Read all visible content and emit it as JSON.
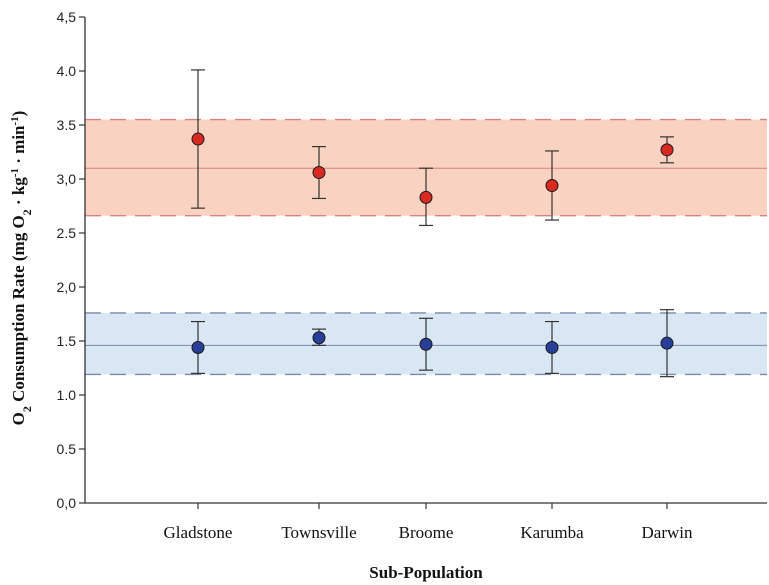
{
  "chart_data": {
    "type": "scatter",
    "title": "",
    "xlabel": "Sub-Population",
    "ylabel_parts": {
      "a": "O",
      "a_sub": "2",
      "b": " Consumption Rate (mg O",
      "b_sub": "2",
      "c": " · kg",
      "c_sup": "-1",
      "d": " · min",
      "d_sup": "-1",
      "e": ")"
    },
    "categories": [
      "Gladstone",
      "Townsville",
      "Broome",
      "Karumba",
      "Darwin"
    ],
    "ylim": [
      0,
      4.5
    ],
    "yticks": [
      "0,0",
      "0.5",
      "1.0",
      "1.5",
      "2,0",
      "2.5",
      "3,0",
      "3.5",
      "4.0",
      "4,5"
    ],
    "yticks_values": [
      0,
      0.5,
      1.0,
      1.5,
      2.0,
      2.5,
      3.0,
      3.5,
      4.0,
      4.5
    ],
    "grid": false,
    "series": [
      {
        "color": "#d92a22",
        "values": [
          3.37,
          3.06,
          2.83,
          2.94,
          3.27
        ],
        "err_low": [
          2.73,
          2.82,
          2.57,
          2.62,
          3.15
        ],
        "err_high": [
          4.01,
          3.3,
          3.1,
          3.26,
          3.39
        ],
        "band": {
          "mean": 3.1,
          "low": 2.66,
          "high": 3.55,
          "fill": "#f9d2c2",
          "line": "#d98080"
        }
      },
      {
        "color": "#283f9a",
        "values": [
          1.44,
          1.53,
          1.47,
          1.44,
          1.48
        ],
        "err_low": [
          1.2,
          1.46,
          1.23,
          1.2,
          1.17
        ],
        "err_high": [
          1.68,
          1.61,
          1.71,
          1.68,
          1.79
        ],
        "band": {
          "mean": 1.46,
          "low": 1.19,
          "high": 1.76,
          "fill": "#d9e6f4",
          "line": "#7a8aa8"
        }
      }
    ]
  }
}
